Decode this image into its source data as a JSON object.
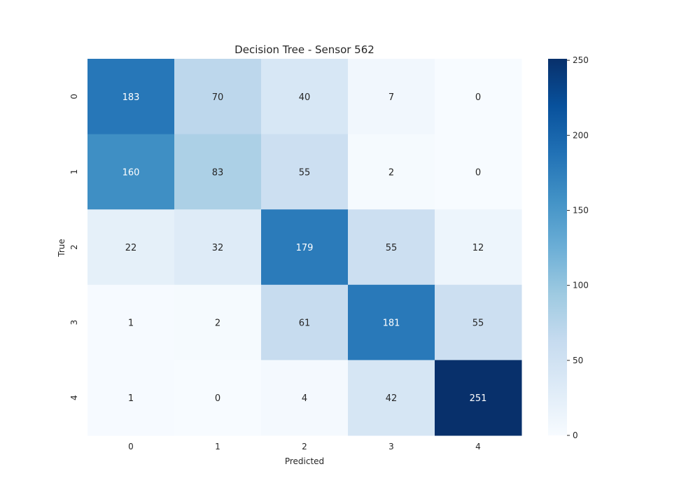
{
  "chart_data": {
    "type": "heatmap",
    "title": "Decision Tree - Sensor 562",
    "xlabel": "Predicted",
    "ylabel": "True",
    "x_categories": [
      "0",
      "1",
      "2",
      "3",
      "4"
    ],
    "y_categories": [
      "0",
      "1",
      "2",
      "3",
      "4"
    ],
    "matrix": [
      [
        183,
        70,
        40,
        7,
        0
      ],
      [
        160,
        83,
        55,
        2,
        0
      ],
      [
        22,
        32,
        179,
        55,
        12
      ],
      [
        1,
        2,
        61,
        181,
        55
      ],
      [
        1,
        0,
        4,
        42,
        251
      ]
    ],
    "colormap": "Blues",
    "color_range": [
      0,
      251
    ],
    "colorbar_ticks": [
      0,
      50,
      100,
      150,
      200,
      250
    ],
    "colorbar_tick_labels": [
      "0",
      "50",
      "100",
      "150",
      "200",
      "250"
    ],
    "grid": false,
    "legend": "colorbar-right"
  }
}
